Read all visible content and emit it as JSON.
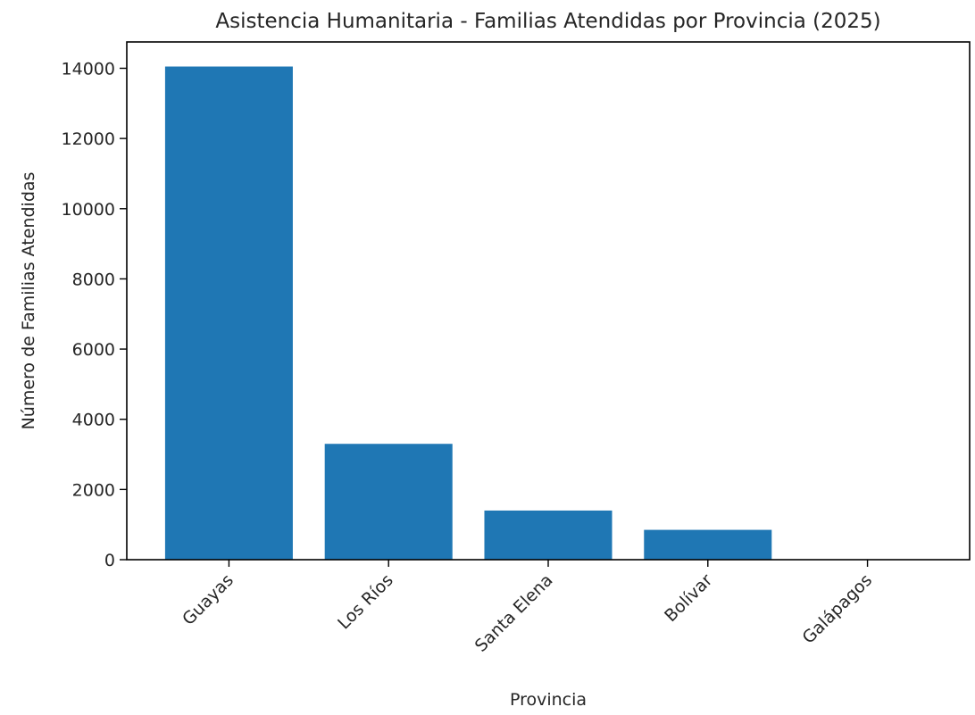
{
  "chart_data": {
    "type": "bar",
    "title": "Asistencia Humanitaria - Familias Atendidas por Provincia (2025)",
    "xlabel": "Provincia",
    "ylabel": "Número de Familias Atendidas",
    "categories": [
      "Guayas",
      "Los Ríos",
      "Santa Elena",
      "Bolívar",
      "Galápagos"
    ],
    "values": [
      14050,
      3300,
      1400,
      850,
      0
    ],
    "ylim": [
      0,
      14750
    ],
    "yticks": [
      0,
      2000,
      4000,
      6000,
      8000,
      10000,
      12000,
      14000
    ],
    "grid": false,
    "bar_color": "#1f77b4"
  }
}
